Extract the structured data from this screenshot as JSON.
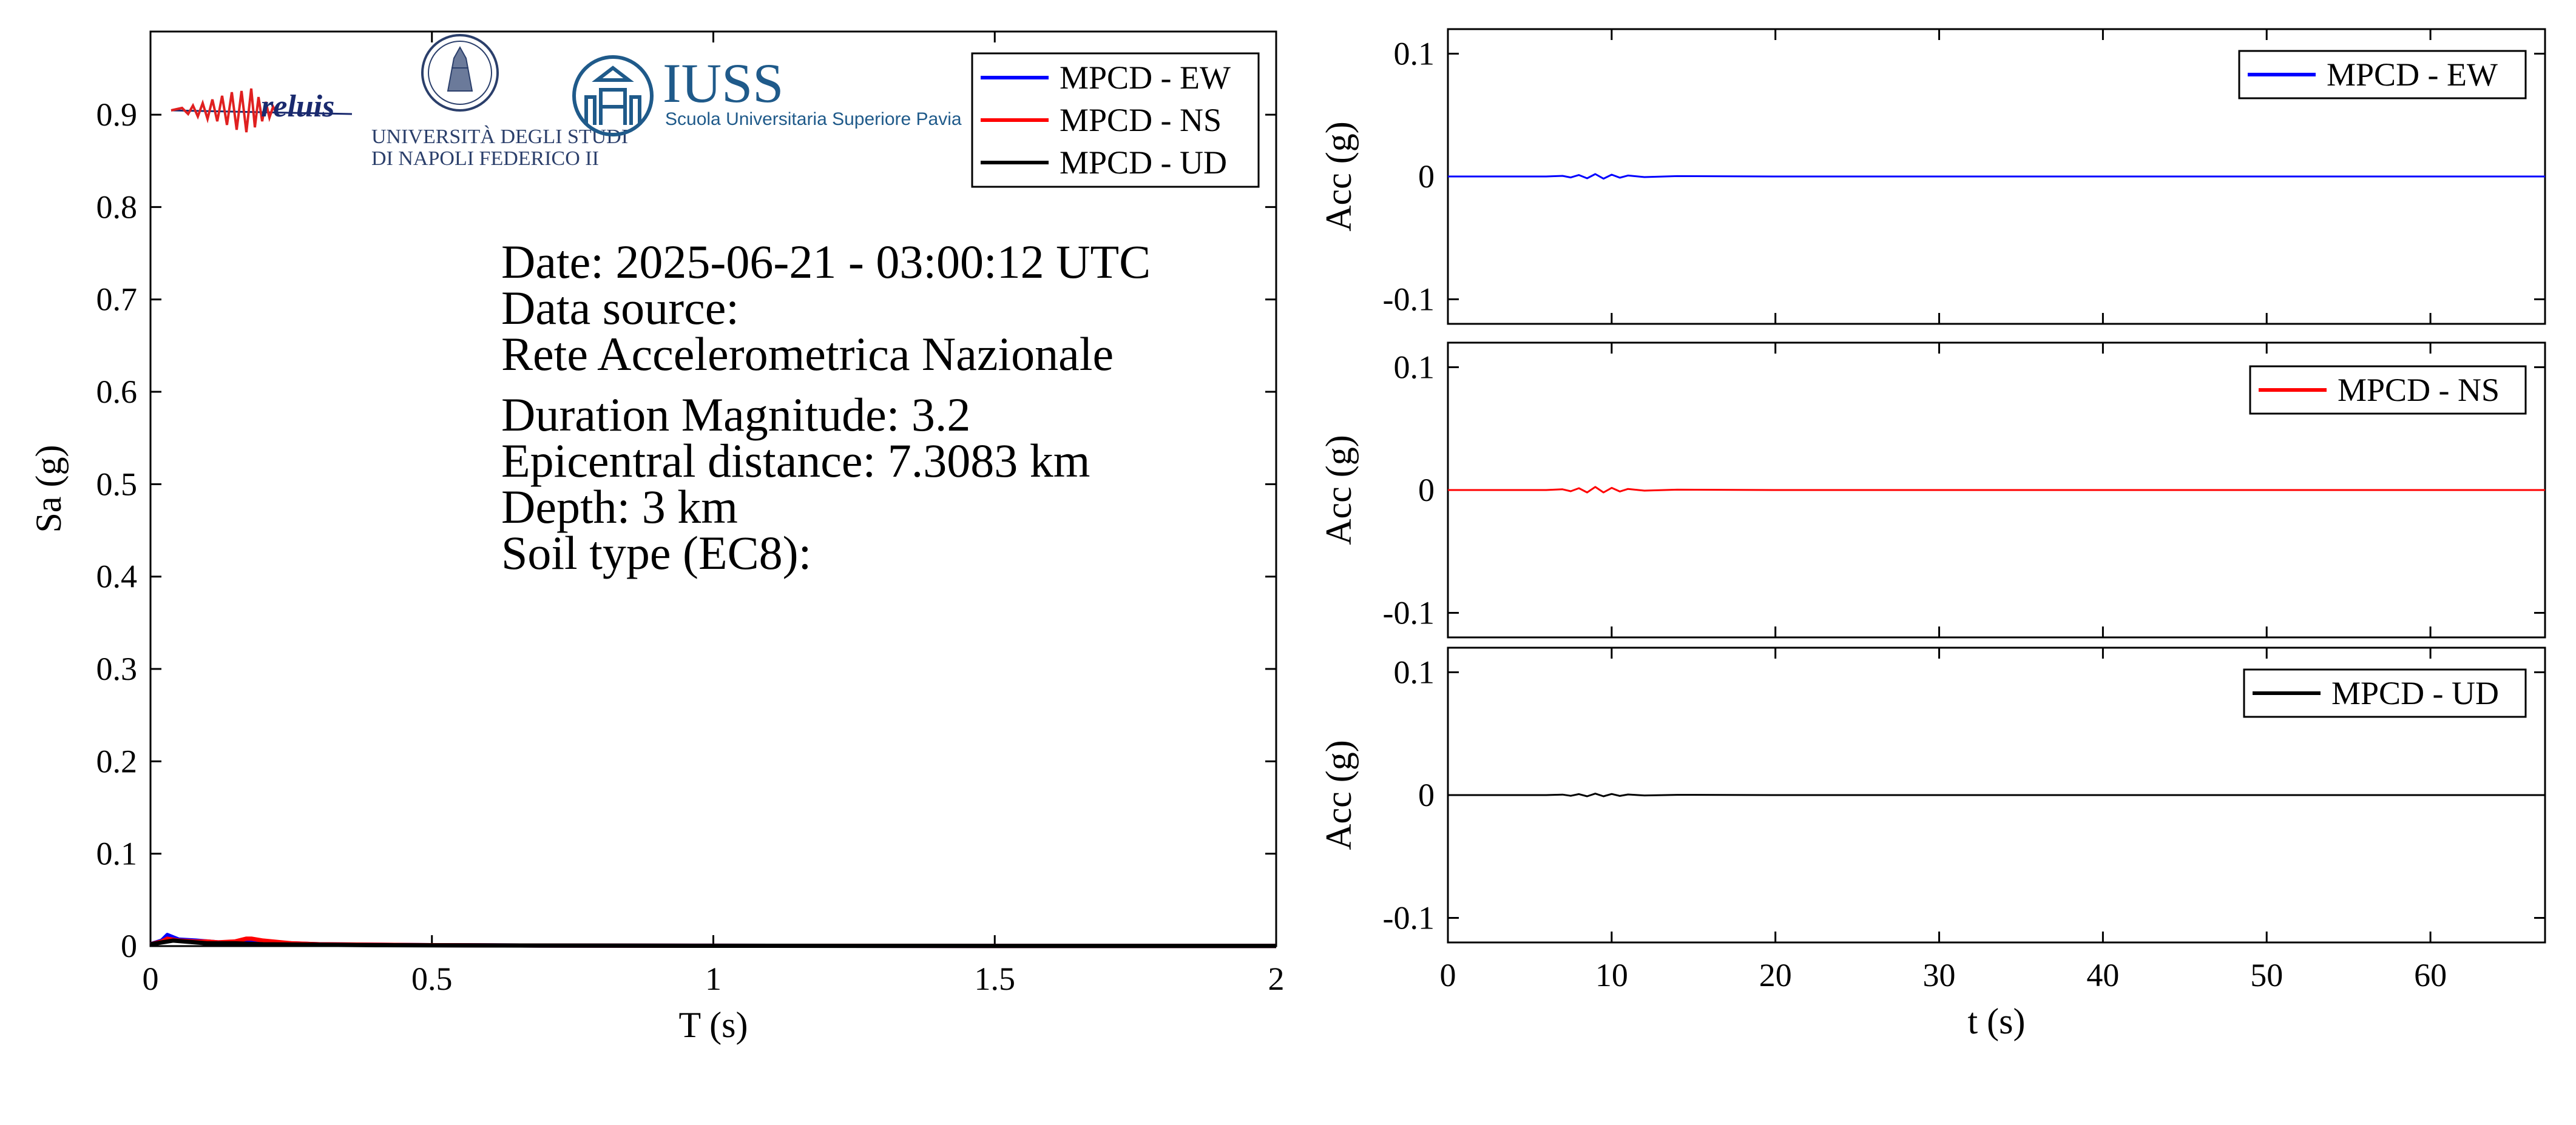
{
  "colors": {
    "ew": "#0000ff",
    "ns": "#ff0000",
    "ud": "#000000",
    "iuss": "#1f5a8a",
    "unina": "#2b3f6b"
  },
  "logos": {
    "reluis_text": "reluis",
    "unina_line1": "UNIVERSITÀ DEGLI STUDI",
    "unina_line2": "DI NAPOLI FEDERICO II",
    "iuss_title": "IUSS",
    "iuss_subtitle": "Scuola Universitaria Superiore Pavia"
  },
  "info": {
    "date": "Date: 2025-06-21 - 03:00:12 UTC",
    "data_source": "Data source:",
    "network": "Rete Accelerometrica Nazionale",
    "magnitude": "Duration Magnitude: 3.2",
    "distance": "Epicentral distance: 7.3083 km",
    "depth": "Depth: 3 km",
    "soil": "Soil type (EC8):"
  },
  "chart_data": [
    {
      "type": "line",
      "xlabel": "T (s)",
      "ylabel": "Sa (g)",
      "xlim": [
        0,
        2
      ],
      "ylim": [
        0,
        0.99
      ],
      "xticks": [
        0,
        0.5,
        1,
        1.5,
        2
      ],
      "xtick_labels": [
        "0",
        "0.5",
        "1",
        "1.5",
        "2"
      ],
      "yticks": [
        0,
        0.1,
        0.2,
        0.3,
        0.4,
        0.5,
        0.6,
        0.7,
        0.8,
        0.9
      ],
      "ytick_labels": [
        "0",
        "0.1",
        "0.2",
        "0.3",
        "0.4",
        "0.5",
        "0.6",
        "0.7",
        "0.8",
        "0.9"
      ],
      "legend": "top-right",
      "grid": false,
      "series": [
        {
          "name": "MPCD - EW",
          "color": "#0000ff",
          "x": [
            0,
            0.02,
            0.03,
            0.05,
            0.08,
            0.1,
            0.12,
            0.15,
            0.18,
            0.2,
            0.25,
            0.3,
            0.4,
            0.5,
            0.7,
            1.0,
            1.5,
            2.0
          ],
          "y": [
            0.002,
            0.006,
            0.012,
            0.007,
            0.006,
            0.005,
            0.004,
            0.004,
            0.006,
            0.004,
            0.003,
            0.002,
            0.0015,
            0.001,
            0.0006,
            0.0004,
            0.0002,
            0.0001
          ]
        },
        {
          "name": "MPCD - NS",
          "color": "#ff0000",
          "x": [
            0,
            0.02,
            0.03,
            0.05,
            0.08,
            0.1,
            0.12,
            0.15,
            0.17,
            0.18,
            0.2,
            0.25,
            0.3,
            0.4,
            0.5,
            0.7,
            1.0,
            1.5,
            2.0
          ],
          "y": [
            0.002,
            0.005,
            0.008,
            0.006,
            0.005,
            0.005,
            0.004,
            0.005,
            0.008,
            0.008,
            0.006,
            0.003,
            0.002,
            0.0015,
            0.001,
            0.0006,
            0.0004,
            0.0002,
            0.0001
          ]
        },
        {
          "name": "MPCD - UD",
          "color": "#000000",
          "x": [
            0,
            0.02,
            0.04,
            0.06,
            0.08,
            0.1,
            0.15,
            0.2,
            0.3,
            0.4,
            0.5,
            1.0,
            1.5,
            2.0
          ],
          "y": [
            0.002,
            0.004,
            0.006,
            0.005,
            0.004,
            0.003,
            0.003,
            0.002,
            0.0015,
            0.001,
            0.0008,
            0.0003,
            0.0002,
            0.0001
          ]
        }
      ]
    },
    {
      "type": "line",
      "xlabel": "",
      "ylabel": "Acc (g)",
      "xlim": [
        0,
        67
      ],
      "ylim": [
        -0.12,
        0.12
      ],
      "yticks": [
        -0.1,
        0,
        0.1
      ],
      "ytick_labels": [
        "-0.1",
        "0",
        "0.1"
      ],
      "legend": "top-right",
      "series": [
        {
          "name": "MPCD - EW",
          "color": "#0000ff",
          "x": [
            0,
            6,
            7,
            7.5,
            8,
            8.5,
            9,
            9.5,
            10,
            10.5,
            11,
            12,
            14,
            20,
            30,
            67
          ],
          "y": [
            0,
            0,
            0.0005,
            -0.0008,
            0.0012,
            -0.0015,
            0.002,
            -0.0018,
            0.0015,
            -0.001,
            0.0008,
            -0.0005,
            0.0003,
            0,
            0,
            0
          ]
        }
      ]
    },
    {
      "type": "line",
      "xlabel": "",
      "ylabel": "Acc (g)",
      "xlim": [
        0,
        67
      ],
      "ylim": [
        -0.12,
        0.12
      ],
      "yticks": [
        -0.1,
        0,
        0.1
      ],
      "ytick_labels": [
        "-0.1",
        "0",
        "0.1"
      ],
      "legend": "top-right",
      "series": [
        {
          "name": "MPCD - NS",
          "color": "#ff0000",
          "x": [
            0,
            6,
            7,
            7.5,
            8,
            8.5,
            9,
            9.5,
            10,
            10.5,
            11,
            12,
            14,
            20,
            30,
            67
          ],
          "y": [
            0,
            0,
            0.0006,
            -0.001,
            0.0015,
            -0.002,
            0.0025,
            -0.002,
            0.0018,
            -0.0012,
            0.0009,
            -0.0005,
            0.0003,
            0,
            0,
            0
          ]
        }
      ]
    },
    {
      "type": "line",
      "xlabel": "t (s)",
      "ylabel": "Acc (g)",
      "xlim": [
        0,
        67
      ],
      "ylim": [
        -0.12,
        0.12
      ],
      "xticks": [
        0,
        10,
        20,
        30,
        40,
        50,
        60
      ],
      "xtick_labels": [
        "0",
        "10",
        "20",
        "30",
        "40",
        "50",
        "60"
      ],
      "yticks": [
        -0.1,
        0,
        0.1
      ],
      "ytick_labels": [
        "-0.1",
        "0",
        "0.1"
      ],
      "legend": "top-right",
      "series": [
        {
          "name": "MPCD - UD",
          "color": "#000000",
          "x": [
            0,
            6,
            7,
            7.5,
            8,
            8.5,
            9,
            9.5,
            10,
            10.5,
            11,
            12,
            14,
            20,
            30,
            67
          ],
          "y": [
            0,
            0,
            0.0004,
            -0.0006,
            0.0008,
            -0.001,
            0.0012,
            -0.001,
            0.0009,
            -0.0007,
            0.0005,
            -0.0003,
            0.0002,
            0,
            0,
            0
          ]
        }
      ]
    }
  ]
}
